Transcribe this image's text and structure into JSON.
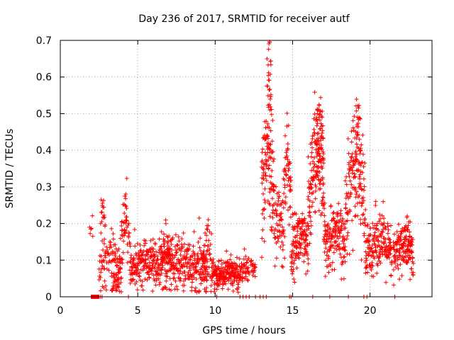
{
  "chart_data": {
    "type": "scatter",
    "title": "Day 236 of 2017, SRMTID for receiver autf",
    "xlabel": "GPS time / hours",
    "ylabel": "SRMTID / TECUs",
    "xlim": [
      0,
      24
    ],
    "ylim": [
      0,
      0.7
    ],
    "xticks": [
      "0",
      "5",
      "10",
      "15",
      "20"
    ],
    "yticks": [
      "0",
      "0.1",
      "0.2",
      "0.3",
      "0.4",
      "0.5",
      "0.6",
      "0.7"
    ],
    "grid": true,
    "marker": "+",
    "color": "#ff0000",
    "series": [
      {
        "name": "SRMTID",
        "segments": [
          {
            "t0": 2.0,
            "t1": 2.5,
            "base": 0.0,
            "amp": 0.0,
            "noise": 0.002,
            "n": 20
          },
          {
            "t0": 1.9,
            "t1": 2.1,
            "base": 0.17,
            "amp": 0.04,
            "noise": 0.02,
            "n": 6
          },
          {
            "t0": 2.5,
            "t1": 4.0,
            "base": 0.06,
            "amp": 0.05,
            "noise": 0.04,
            "n": 90
          },
          {
            "t0": 2.6,
            "t1": 2.9,
            "base": 0.2,
            "amp": 0.04,
            "noise": 0.03,
            "n": 18
          },
          {
            "t0": 3.3,
            "t1": 3.8,
            "base": 0.03,
            "amp": 0.01,
            "noise": 0.015,
            "n": 30
          },
          {
            "t0": 3.8,
            "t1": 4.5,
            "base": 0.1,
            "amp": 0.1,
            "noise": 0.04,
            "n": 45
          },
          {
            "t0": 4.1,
            "t1": 4.3,
            "base": 0.21,
            "amp": 0.04,
            "noise": 0.02,
            "n": 10
          },
          {
            "t0": 4.2,
            "t1": 4.3,
            "base": 0.32,
            "amp": 0.0,
            "noise": 0.003,
            "n": 1
          },
          {
            "t0": 4.5,
            "t1": 9.5,
            "base": 0.075,
            "amp": 0.02,
            "noise": 0.035,
            "n": 480
          },
          {
            "t0": 6.5,
            "t1": 7.2,
            "base": 0.11,
            "amp": 0.04,
            "noise": 0.03,
            "n": 40
          },
          {
            "t0": 9.2,
            "t1": 9.8,
            "base": 0.09,
            "amp": 0.05,
            "noise": 0.035,
            "n": 50
          },
          {
            "t0": 9.8,
            "t1": 11.6,
            "base": 0.055,
            "amp": 0.01,
            "noise": 0.02,
            "n": 200
          },
          {
            "t0": 11.6,
            "t1": 12.2,
            "base": 0.07,
            "amp": 0.01,
            "noise": 0.02,
            "n": 40
          },
          {
            "t0": 12.3,
            "t1": 12.6,
            "base": 0.08,
            "amp": 0.0,
            "noise": 0.012,
            "n": 20
          },
          {
            "t0": 13.0,
            "t1": 13.8,
            "base": 0.25,
            "amp": 0.15,
            "noise": 0.08,
            "n": 120
          },
          {
            "t0": 13.4,
            "t1": 13.6,
            "base": 0.55,
            "amp": 0.1,
            "noise": 0.06,
            "n": 25
          },
          {
            "t0": 13.8,
            "t1": 14.4,
            "base": 0.15,
            "amp": 0.08,
            "noise": 0.06,
            "n": 60
          },
          {
            "t0": 14.4,
            "t1": 14.9,
            "base": 0.25,
            "amp": 0.12,
            "noise": 0.07,
            "n": 60
          },
          {
            "t0": 14.9,
            "t1": 16.0,
            "base": 0.12,
            "amp": 0.04,
            "noise": 0.04,
            "n": 130
          },
          {
            "t0": 16.0,
            "t1": 17.1,
            "base": 0.2,
            "amp": 0.2,
            "noise": 0.08,
            "n": 150
          },
          {
            "t0": 16.5,
            "t1": 17.0,
            "base": 0.38,
            "amp": 0.06,
            "noise": 0.05,
            "n": 45
          },
          {
            "t0": 17.1,
            "t1": 18.4,
            "base": 0.13,
            "amp": 0.04,
            "noise": 0.04,
            "n": 140
          },
          {
            "t0": 18.4,
            "t1": 19.7,
            "base": 0.22,
            "amp": 0.15,
            "noise": 0.07,
            "n": 140
          },
          {
            "t0": 19.0,
            "t1": 19.4,
            "base": 0.38,
            "amp": 0.08,
            "noise": 0.05,
            "n": 30
          },
          {
            "t0": 19.7,
            "t1": 21.4,
            "base": 0.1,
            "amp": 0.06,
            "noise": 0.04,
            "n": 170
          },
          {
            "t0": 21.5,
            "t1": 22.8,
            "base": 0.1,
            "amp": 0.04,
            "noise": 0.035,
            "n": 140
          },
          {
            "t0": 22.2,
            "t1": 22.7,
            "base": 0.15,
            "amp": 0.03,
            "noise": 0.02,
            "n": 20
          }
        ],
        "zero_line_hours": [
          2.0,
          2.1,
          2.2,
          2.3,
          2.4,
          2.5,
          2.6,
          2.7,
          4.4,
          10.1,
          11.6,
          11.8,
          12.0,
          12.2,
          12.6,
          12.9,
          13.1,
          13.3,
          14.8,
          14.9,
          16.3,
          17.4,
          18.6,
          19.6,
          19.8,
          21.6
        ]
      }
    ]
  }
}
